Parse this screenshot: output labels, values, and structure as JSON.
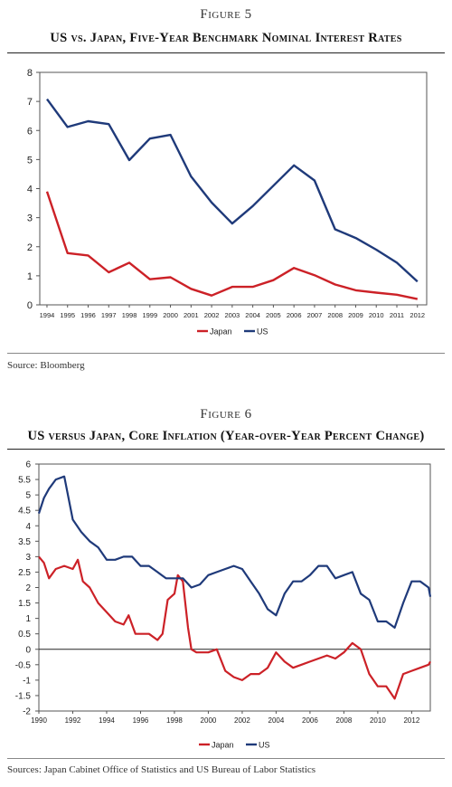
{
  "figure5": {
    "label": "Figure 5",
    "title": "US vs. Japan, Five-Year Benchmark Nominal Interest Rates",
    "source": "Source: Bloomberg"
  },
  "figure6": {
    "label": "Figure 6",
    "title": "US versus Japan, Core Inflation (Year-over-Year Percent Change)",
    "source": "Sources: Japan Cabinet Office of Statistics and US Bureau of Labor Statistics"
  },
  "colors": {
    "japan": "#cc2127",
    "us": "#1f3a7a"
  },
  "chart_data": [
    {
      "type": "line",
      "title": "US vs. Japan, Five-Year Benchmark Nominal Interest Rates",
      "xlabel": "",
      "ylabel": "",
      "x": [
        1994,
        1995,
        1996,
        1997,
        1998,
        1999,
        2000,
        2001,
        2002,
        2003,
        2004,
        2005,
        2006,
        2007,
        2008,
        2009,
        2010,
        2011,
        2012
      ],
      "xticks": [
        "1994",
        "1995",
        "1996",
        "1997",
        "1998",
        "1999",
        "2000",
        "2001",
        "2002",
        "2003",
        "2004",
        "2005",
        "2006",
        "2007",
        "2008",
        "2009",
        "2010",
        "2011",
        "2012"
      ],
      "ylim": [
        0,
        8
      ],
      "yticks": [
        "0",
        "1",
        "2",
        "3",
        "4",
        "5",
        "6",
        "7",
        "8"
      ],
      "series": [
        {
          "name": "Japan",
          "values": [
            3.9,
            1.78,
            1.7,
            1.12,
            1.45,
            0.88,
            0.95,
            0.55,
            0.32,
            0.62,
            0.62,
            0.85,
            1.27,
            1.02,
            0.7,
            0.5,
            0.42,
            0.35,
            0.2
          ]
        },
        {
          "name": "US",
          "values": [
            7.08,
            6.12,
            6.32,
            6.22,
            4.98,
            5.72,
            5.85,
            4.42,
            3.52,
            2.8,
            3.4,
            4.1,
            4.8,
            4.28,
            2.6,
            2.3,
            1.9,
            1.45,
            0.8
          ]
        }
      ],
      "legend": "bottom-center",
      "grid": false
    },
    {
      "type": "line",
      "title": "US versus Japan, Core Inflation (Year-over-Year Percent Change)",
      "xlabel": "",
      "ylabel": "",
      "xlim": [
        1990,
        2013.1
      ],
      "xticks": [
        "1990",
        "1992",
        "1994",
        "1996",
        "1998",
        "2000",
        "2002",
        "2004",
        "2006",
        "2008",
        "2010",
        "2012"
      ],
      "ylim": [
        -2,
        6
      ],
      "yticks": [
        "-2",
        "-1.5",
        "-1",
        "-0.5",
        "0",
        "0.5",
        "1",
        "1.5",
        "2",
        "2.5",
        "3",
        "3.5",
        "4",
        "4.5",
        "5",
        "5.5",
        "6"
      ],
      "series": [
        {
          "name": "Japan",
          "x": [
            1990,
            1990.3,
            1990.6,
            1991,
            1991.5,
            1992,
            1992.3,
            1992.6,
            1993,
            1993.5,
            1994,
            1994.5,
            1995,
            1995.3,
            1995.7,
            1996,
            1996.5,
            1997,
            1997.3,
            1997.6,
            1998,
            1998.2,
            1998.5,
            1998.8,
            1999,
            1999.3,
            2000,
            2000.5,
            2001,
            2001.5,
            2002,
            2002.5,
            2003,
            2003.5,
            2004,
            2004.5,
            2005,
            2005.5,
            2006,
            2006.5,
            2007,
            2007.5,
            2008,
            2008.5,
            2009,
            2009.5,
            2010,
            2010.5,
            2011,
            2011.5,
            2012,
            2012.5,
            2013,
            2013.1
          ],
          "values": [
            3.0,
            2.8,
            2.3,
            2.6,
            2.7,
            2.6,
            2.9,
            2.2,
            2.0,
            1.5,
            1.2,
            0.9,
            0.8,
            1.1,
            0.5,
            0.5,
            0.5,
            0.3,
            0.5,
            1.6,
            1.8,
            2.4,
            2.2,
            0.7,
            0.0,
            -0.1,
            -0.1,
            0.0,
            -0.7,
            -0.9,
            -1.0,
            -0.8,
            -0.8,
            -0.6,
            -0.1,
            -0.4,
            -0.6,
            -0.5,
            -0.4,
            -0.3,
            -0.2,
            -0.3,
            -0.1,
            0.2,
            0.0,
            -0.8,
            -1.2,
            -1.2,
            -1.6,
            -0.8,
            -0.7,
            -0.6,
            -0.5,
            -0.4
          ]
        },
        {
          "name": "US",
          "x": [
            1990,
            1990.3,
            1990.6,
            1991,
            1991.5,
            1992,
            1992.5,
            1993,
            1993.5,
            1994,
            1994.5,
            1995,
            1995.5,
            1996,
            1996.5,
            1997,
            1997.5,
            1998,
            1998.5,
            1999,
            1999.5,
            2000,
            2000.5,
            2001,
            2001.5,
            2002,
            2002.5,
            2003,
            2003.5,
            2004,
            2004.5,
            2005,
            2005.5,
            2006,
            2006.5,
            2007,
            2007.5,
            2008,
            2008.5,
            2009,
            2009.5,
            2010,
            2010.5,
            2011,
            2011.5,
            2012,
            2012.5,
            2013,
            2013.1
          ],
          "values": [
            4.4,
            4.9,
            5.2,
            5.5,
            5.6,
            4.2,
            3.8,
            3.5,
            3.3,
            2.9,
            2.9,
            3.0,
            3.0,
            2.7,
            2.7,
            2.5,
            2.3,
            2.3,
            2.3,
            2.0,
            2.1,
            2.4,
            2.5,
            2.6,
            2.7,
            2.6,
            2.2,
            1.8,
            1.3,
            1.1,
            1.8,
            2.2,
            2.2,
            2.4,
            2.7,
            2.7,
            2.3,
            2.4,
            2.5,
            1.8,
            1.6,
            0.9,
            0.9,
            0.7,
            1.5,
            2.2,
            2.2,
            2.0,
            1.7
          ]
        }
      ],
      "legend": "bottom-center",
      "grid": false
    }
  ]
}
